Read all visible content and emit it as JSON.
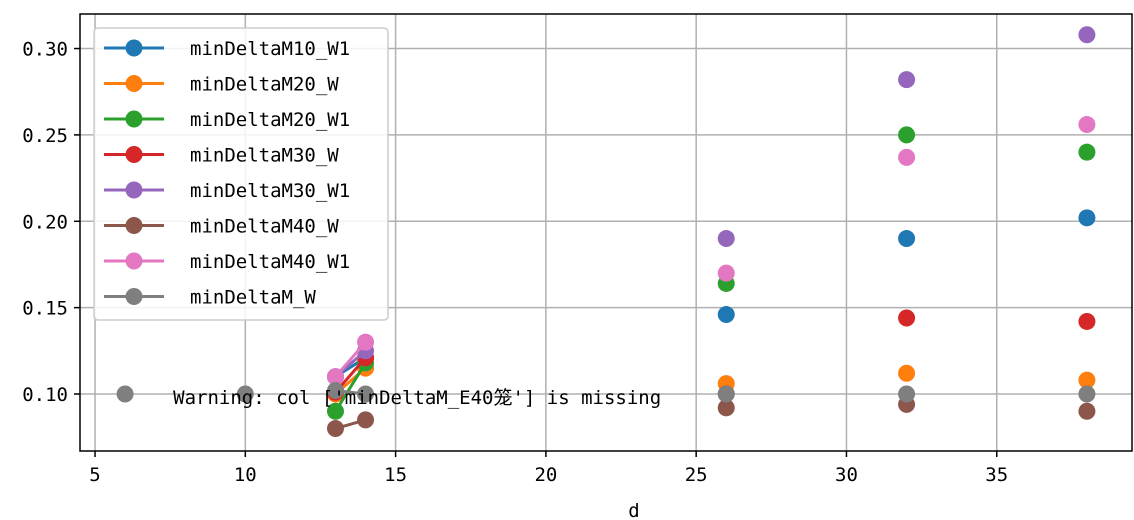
{
  "chart_data": {
    "type": "line",
    "xlabel": "d",
    "ylabel": "",
    "xlim": [
      4.5,
      39.5
    ],
    "ylim": [
      0.067,
      0.32
    ],
    "xticks": [
      5,
      10,
      15,
      20,
      25,
      30,
      35
    ],
    "yticks": [
      0.1,
      0.15,
      0.2,
      0.25,
      0.3
    ],
    "xtick_labels": [
      "5",
      "10",
      "15",
      "20",
      "25",
      "30",
      "35"
    ],
    "ytick_labels": [
      "0.10",
      "0.15",
      "0.20",
      "0.25",
      "0.30"
    ],
    "grid": true,
    "legend_position": "upper-left",
    "annotation": "Warning: col ['minDeltaM_E40笼'] is missing",
    "series": [
      {
        "name": "minDeltaM10_W1",
        "color": "#1f77b4",
        "x": [
          13,
          14,
          26,
          32,
          38
        ],
        "y": [
          0.11,
          0.121,
          0.146,
          0.19,
          0.202
        ]
      },
      {
        "name": "minDeltaM20_W",
        "color": "#ff7f0e",
        "x": [
          13,
          14,
          26,
          32,
          38
        ],
        "y": [
          0.1,
          0.115,
          0.106,
          0.112,
          0.108
        ]
      },
      {
        "name": "minDeltaM20_W1",
        "color": "#2ca02c",
        "x": [
          13,
          14,
          26,
          32,
          38
        ],
        "y": [
          0.09,
          0.118,
          0.164,
          0.25,
          0.24
        ]
      },
      {
        "name": "minDeltaM30_W",
        "color": "#d62728",
        "x": [
          13,
          14,
          26,
          32,
          38
        ],
        "y": [
          0.101,
          0.121,
          0.1,
          0.144,
          0.142
        ]
      },
      {
        "name": "minDeltaM30_W1",
        "color": "#9467bd",
        "x": [
          13,
          14,
          26,
          32,
          38
        ],
        "y": [
          0.11,
          0.125,
          0.19,
          0.282,
          0.308
        ]
      },
      {
        "name": "minDeltaM40_W",
        "color": "#8c564b",
        "x": [
          13,
          14,
          26,
          32,
          38
        ],
        "y": [
          0.08,
          0.085,
          0.092,
          0.094,
          0.09
        ]
      },
      {
        "name": "minDeltaM40_W1",
        "color": "#e377c2",
        "x": [
          13,
          14,
          26,
          32,
          38
        ],
        "y": [
          0.11,
          0.13,
          0.17,
          0.237,
          0.256
        ]
      },
      {
        "name": "minDeltaM_W",
        "color": "#7f7f7f",
        "x": [
          6,
          10,
          13,
          14,
          26,
          32,
          38
        ],
        "y": [
          0.1,
          0.1,
          0.102,
          0.1,
          0.1,
          0.1,
          0.1
        ]
      }
    ]
  }
}
